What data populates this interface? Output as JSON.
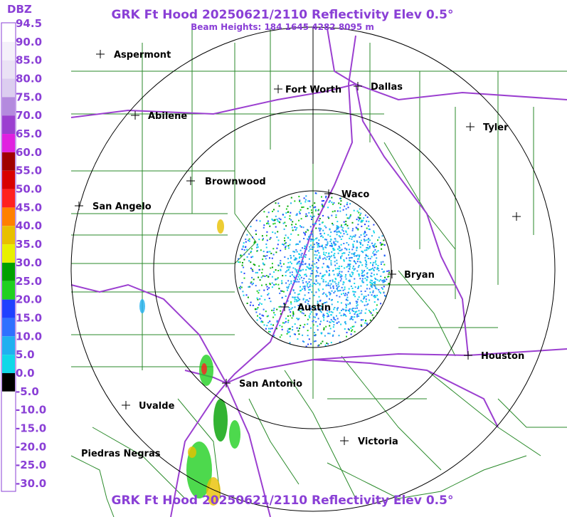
{
  "header": {
    "title": "GRK Ft Hood 20250621/2110 Reflectivity Elev 0.5°",
    "subtitle": "Beam Heights: 184 1645 4282 8095 m"
  },
  "legend": {
    "unit": "DBZ",
    "entries": [
      {
        "label": "94.5",
        "color": "#ffffff"
      },
      {
        "label": "90.0",
        "color": "#f4f0fa"
      },
      {
        "label": "85.0",
        "color": "#eae2f5"
      },
      {
        "label": "80.0",
        "color": "#dccdf0"
      },
      {
        "label": "75.0",
        "color": "#b48ade"
      },
      {
        "label": "70.0",
        "color": "#9b3fd0"
      },
      {
        "label": "65.0",
        "color": "#e020e0"
      },
      {
        "label": "60.0",
        "color": "#a00000"
      },
      {
        "label": "55.0",
        "color": "#d80000"
      },
      {
        "label": "50.0",
        "color": "#ff2020"
      },
      {
        "label": "45.0",
        "color": "#ff8000"
      },
      {
        "label": "40.0",
        "color": "#e8c000"
      },
      {
        "label": "35.0",
        "color": "#e8f000"
      },
      {
        "label": "30.0",
        "color": "#00a000"
      },
      {
        "label": "25.0",
        "color": "#20d020"
      },
      {
        "label": "20.0",
        "color": "#2040ff"
      },
      {
        "label": "15.0",
        "color": "#3070ff"
      },
      {
        "label": "10.0",
        "color": "#20b0f0"
      },
      {
        "label": "5.0",
        "color": "#10d8e8"
      },
      {
        "label": "0.0",
        "color": "#000000"
      },
      {
        "label": "-5.0",
        "color": "#ffffff"
      },
      {
        "label": "-10.0",
        "color": "#ffffff"
      },
      {
        "label": "-15.0",
        "color": "#ffffff"
      },
      {
        "label": "-20.0",
        "color": "#ffffff"
      },
      {
        "label": "-25.0",
        "color": "#ffffff"
      },
      {
        "label": "-30.0",
        "color": "#ffffff"
      }
    ]
  },
  "cities": [
    "Aspermont",
    "Fort Worth",
    "Dallas",
    "Abilene",
    "Tyler",
    "Brownwood",
    "Waco",
    "San Angelo",
    "Bryan",
    "Austin",
    "Houston",
    "San Antonio",
    "Uvalde",
    "Victoria",
    "Piedras Negras"
  ]
}
